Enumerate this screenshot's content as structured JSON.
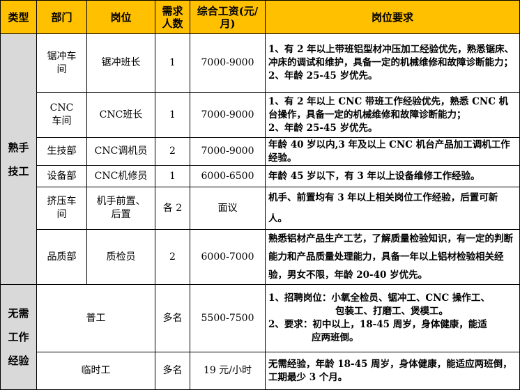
{
  "colors": {
    "header_bg": "#FFC000",
    "category_bg": "#D9D9D9"
  },
  "header": {
    "type": "类型",
    "dept": "部门",
    "position": "岗位",
    "count": "需求人数",
    "salary": "综合工资(元/月)",
    "requirements": "岗位要求"
  },
  "categories": {
    "skilled": "熟手技工",
    "unskilled": "无需工作经验"
  },
  "rows": [
    {
      "dept": "锯冲车间",
      "position": "锯冲班长",
      "count": "1",
      "salary": "7000-9000",
      "req": [
        "1、有 2 年以上带班铝型材冲压加工经验优先，熟悉锯床、冲床的调试和维护，具备一定的机械维修和故障诊断能力；",
        "2、年龄 25-45 岁优先。"
      ]
    },
    {
      "dept": "CNC车间",
      "position": "CNC班长",
      "count": "1",
      "salary": "7000-9000",
      "req": [
        "1、有 2 年以上 CNC 带班工作经验优先，熟悉 CNC 机台操作，具备一定的机械维修和故障诊断能力；",
        "2、年龄 25-45 岁优先。"
      ]
    },
    {
      "dept": "生技部",
      "position": "CNC调机员",
      "count": "2",
      "salary": "7000-9000",
      "req": [
        "年龄 40 岁以内,3 年及以上 CNC 机台产品加工调机工作经验。"
      ]
    },
    {
      "dept": "设备部",
      "position": "CNC机修员",
      "count": "1",
      "salary": "6000-6500",
      "req": [
        "年龄 45 岁以下，有 3 年以上设备维修工作经验。"
      ]
    },
    {
      "dept": "挤压车间",
      "position": "机手前置、后置",
      "count": "各 2",
      "salary": "面议",
      "req": [
        "机手、前置均有 3 年以上相关岗位工作经验，后置可新人。"
      ]
    },
    {
      "dept": "品质部",
      "position": "质检员",
      "count": "2",
      "salary": "6000-7000",
      "req": [
        "熟悉铝材产品生产工艺，了解质量检验知识，有一定的判断能力和产品质量处理能力，具备一年以上铝材检验相关经验，男女不限，年龄 20-40 岁优先。"
      ]
    },
    {
      "position": "普工",
      "count": "多名",
      "salary": "5500-7500",
      "req": [
        "1、招聘岗位：小氧全检员、锯冲工、CNC 操作工、",
        "包装工、打磨工、煲模工。",
        "2、要求：初中以上，18-45 周岁，身体健康，能适",
        "应两班倒。"
      ]
    },
    {
      "position": "临时工",
      "count": "多名",
      "salary": "19 元/小时",
      "req": [
        "无需经验，年龄 18-45 周岁，身体健康，能适应两班倒，工期最少 3 个月。"
      ]
    }
  ]
}
